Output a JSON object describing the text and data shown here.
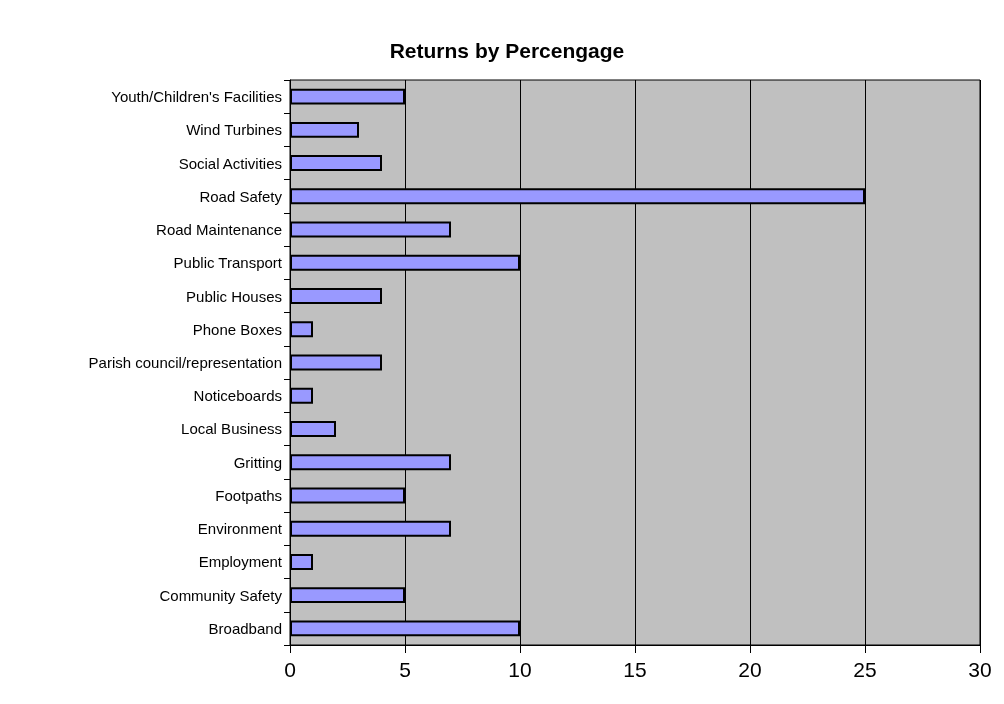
{
  "chart_data": {
    "type": "bar",
    "orientation": "horizontal",
    "title": "Returns by Percengage",
    "categories": [
      "Youth/Children's Facilities",
      "Wind Turbines",
      "Social Activities",
      "Road Safety",
      "Road Maintenance",
      "Public Transport",
      "Public Houses",
      "Phone Boxes",
      "Parish council/representation",
      "Noticeboards",
      "Local Business",
      "Gritting",
      "Footpaths",
      "Environment",
      "Employment",
      "Community Safety",
      "Broadband"
    ],
    "values": [
      5,
      3,
      4,
      25,
      7,
      10,
      4,
      1,
      4,
      1,
      2,
      7,
      5,
      7,
      1,
      5,
      10
    ],
    "color": "#9999ff",
    "xlim": [
      0,
      30
    ],
    "xticks": [
      0,
      5,
      10,
      15,
      20,
      25,
      30
    ],
    "grid": "x"
  }
}
